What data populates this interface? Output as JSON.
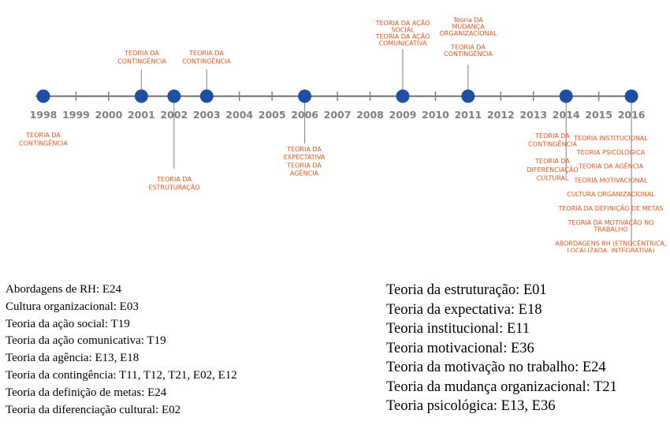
{
  "timeline": {
    "years": [
      "1998",
      "1999",
      "2000",
      "2001",
      "2002",
      "2003",
      "2004",
      "2005",
      "2006",
      "2007",
      "2008",
      "2009",
      "2010",
      "2011",
      "2012",
      "2013",
      "2014",
      "2015",
      "2016"
    ],
    "events": [
      {
        "year": "1998",
        "side": "below",
        "lines": [
          "TEORIA  DA",
          "CONTINGÊNCIA"
        ]
      },
      {
        "year": "2001",
        "side": "above",
        "lines": [
          "TEORIA  DA",
          "CONTINGÊNCIA"
        ]
      },
      {
        "year": "2002",
        "side": "below",
        "lines": [
          "TEORIA  DA",
          "ESTRUTURAÇÃO"
        ]
      },
      {
        "year": "2003",
        "side": "above",
        "lines": [
          "TEORIA  DA",
          "CONTINGÊNCIA"
        ]
      },
      {
        "year": "2006",
        "side": "below",
        "lines": [
          "TEORIA  DA",
          "EXPECTATIVA",
          "TEORIA  DA",
          "AGÊNCIA"
        ]
      },
      {
        "year": "2009",
        "side": "above",
        "lines": [
          "TEORIA  DA AÇÃO",
          "SOCIAL",
          "TEORIA  DA AÇÃO",
          "COMUNICATIVA"
        ]
      },
      {
        "year": "2011",
        "side": "above",
        "lines": [
          "Teoria  DA",
          "MUDANÇA",
          "ORGANIZACIONAL",
          "",
          "TEORIA  DA",
          "CONTINGÊNCIA"
        ]
      },
      {
        "year": "2014",
        "side": "below",
        "lines": [
          "TEORIA  DA",
          "CONTINGÊNCIA",
          "",
          "",
          "TEORIA  DA",
          "DIFERENCIAÇÃO",
          "CULTURAL"
        ]
      },
      {
        "year": "2016",
        "side": "below",
        "lines": [
          "TEORIA  INSTITUCIONAL",
          "",
          "TEORIA  PSICOLÓGICA",
          "",
          "TEORIA  DA AGÊNCIA",
          "",
          "TEORIA  MOTIVACIONAL",
          "",
          "CULTURA  ORGANIZACIONAL",
          "",
          "TEORIA  DA DEFINIÇÃO  DE METAS",
          "",
          "TEORIA  DA MOTIVAÇÃO  NO",
          "TRABALHO",
          "",
          "ABORDAGENS  RH (ETNOCÊNTRICA,",
          "LOCALIZADA,  INTEGRATIVA)"
        ]
      }
    ]
  },
  "legend_left": [
    "Abordagens de RH: E24",
    "Cultura organizacional: E03",
    "Teoria da ação social: T19",
    "Teoria da ação comunicativa: T19",
    "Teoria da agência: E13, E18",
    "Teoria da contingência: T11, T12, T21, E02, E12",
    "Teoria da definição de metas: E24",
    "Teoria da diferenciação cultural: E02"
  ],
  "legend_right": [
    "Teoria da estruturação: E01",
    "Teoria da expectativa: E18",
    "Teoria institucional: E11",
    "Teoria motivacional: E36",
    "Teoria da motivação no trabalho: E24",
    "Teoria da mudança organizacional: T21",
    "Teoria psicológica: E13, E36"
  ],
  "colors": {
    "axis": "#808080",
    "dot": "#1f4fa3",
    "label": "#e8561b",
    "year": "#7f7f7f"
  }
}
